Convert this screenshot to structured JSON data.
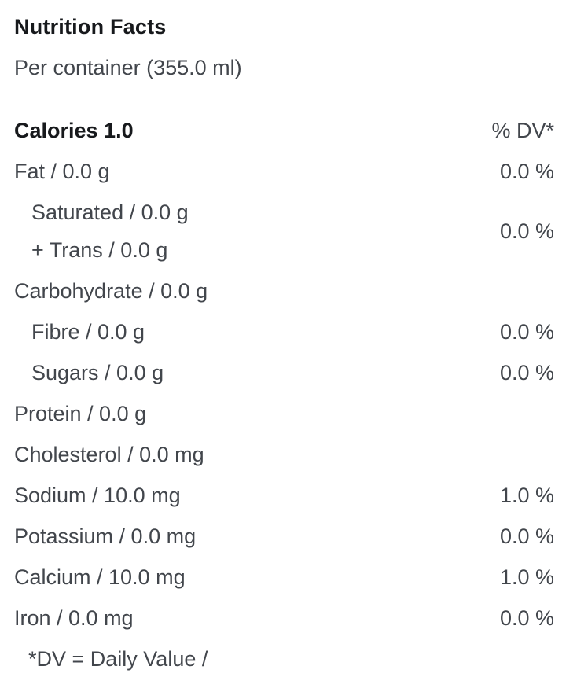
{
  "header": {
    "title": "Nutrition Facts",
    "serving": "Per container (355.0 ml)"
  },
  "table": {
    "calories": {
      "label": "Calories 1.0",
      "dv_header": "% DV*"
    },
    "sat_trans_group": {
      "line1": "Saturated / 0.0 g",
      "line2": "+ Trans / 0.0 g",
      "value": "0.0 %"
    },
    "rows": [
      {
        "label": "Fat / 0.0 g",
        "value": "0.0 %",
        "indent": false
      },
      {
        "label": "Carbohydrate / 0.0 g",
        "value": "",
        "indent": false
      },
      {
        "label": "Fibre / 0.0 g",
        "value": "0.0 %",
        "indent": true
      },
      {
        "label": "Sugars / 0.0 g",
        "value": "0.0 %",
        "indent": true
      },
      {
        "label": "Protein / 0.0 g",
        "value": "",
        "indent": false
      },
      {
        "label": "Cholesterol / 0.0 mg",
        "value": "",
        "indent": false
      },
      {
        "label": "Sodium / 10.0 mg",
        "value": "1.0 %",
        "indent": false
      },
      {
        "label": "Potassium / 0.0 mg",
        "value": "0.0 %",
        "indent": false
      },
      {
        "label": "Calcium / 10.0 mg",
        "value": "1.0 %",
        "indent": false
      },
      {
        "label": "Iron / 0.0 mg",
        "value": "0.0 %",
        "indent": false
      }
    ],
    "footnote": "*DV = Daily Value /"
  },
  "colors": {
    "heading_text": "#17191c",
    "body_text": "#42464c",
    "background": "#ffffff"
  }
}
